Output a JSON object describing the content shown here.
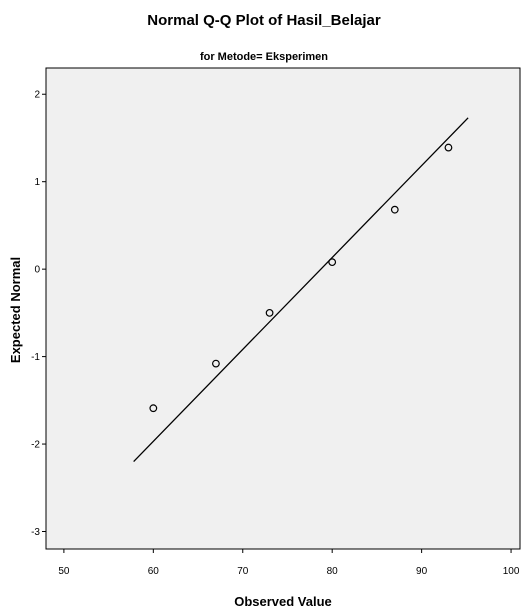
{
  "chart_data": {
    "type": "scatter",
    "title": "Normal Q-Q Plot of Hasil_Belajar",
    "subtitle": "for Metode= Eksperimen",
    "xlabel": "Observed Value",
    "ylabel": "Expected Normal",
    "xlim": [
      48,
      101
    ],
    "ylim": [
      -3.2,
      2.3
    ],
    "xticks": [
      50,
      60,
      70,
      80,
      90,
      100
    ],
    "yticks": [
      2,
      1,
      0,
      -1,
      -2,
      -3
    ],
    "points": [
      {
        "x": 60,
        "y": -1.59
      },
      {
        "x": 67,
        "y": -1.08
      },
      {
        "x": 73,
        "y": -0.5
      },
      {
        "x": 80,
        "y": 0.08
      },
      {
        "x": 87,
        "y": 0.68
      },
      {
        "x": 93,
        "y": 1.39
      }
    ],
    "reference_line": {
      "x": [
        57.8,
        95.2
      ],
      "y": [
        -2.2,
        1.73
      ]
    },
    "grid": false,
    "legend": "none",
    "colors": {
      "plot_background": "#f0f0f0",
      "marker": "#000000",
      "line": "#000000"
    }
  }
}
